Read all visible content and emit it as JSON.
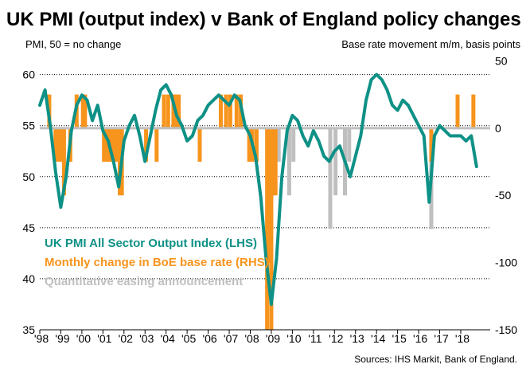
{
  "chart_data": {
    "type": "line",
    "title": "UK PMI (output index) v Bank of England policy changes",
    "left_axis_label": "PMI, 50 = no change",
    "right_axis_label": "Base rate movement  m/m, basis points",
    "source": "Sources: IHS Markit, Bank of England.",
    "x_tick_labels": [
      "'98",
      "'99",
      "'00",
      "'01",
      "'02",
      "'03",
      "'04",
      "'05",
      "'06",
      "'07",
      "'08",
      "'09",
      "'10",
      "'11",
      "'12",
      "'13",
      "'14",
      "'15",
      "'16",
      "'17",
      "'18"
    ],
    "y_left": {
      "min": 35,
      "max": 62,
      "ticks": [
        35,
        40,
        45,
        50,
        55,
        60
      ]
    },
    "y_right": {
      "min": -150,
      "max": 55,
      "ticks": [
        -150,
        -100,
        -50,
        0,
        50
      ]
    },
    "grid": true,
    "legend": [
      {
        "label": "UK PMI All Sector Output Index (LHS)",
        "color": "#0e9186"
      },
      {
        "label": "Monthly change in BoE base rate (RHS)",
        "color": "#f7941d"
      },
      {
        "label": "Quantitative easing announcement",
        "color": "#bfbfbf"
      }
    ],
    "series": [
      {
        "name": "UK PMI All Sector Output Index (LHS)",
        "axis": "left",
        "color": "#0e9186",
        "x": [
          1998.0,
          1998.25,
          1998.5,
          1998.75,
          1999.0,
          1999.25,
          1999.5,
          1999.75,
          2000.0,
          2000.25,
          2000.5,
          2000.75,
          2001.0,
          2001.25,
          2001.5,
          2001.75,
          2002.0,
          2002.25,
          2002.5,
          2002.75,
          2003.0,
          2003.25,
          2003.5,
          2003.75,
          2004.0,
          2004.25,
          2004.5,
          2004.75,
          2005.0,
          2005.25,
          2005.5,
          2005.75,
          2006.0,
          2006.25,
          2006.5,
          2006.75,
          2007.0,
          2007.25,
          2007.5,
          2007.75,
          2008.0,
          2008.25,
          2008.5,
          2008.75,
          2009.0,
          2009.25,
          2009.5,
          2009.75,
          2010.0,
          2010.25,
          2010.5,
          2010.75,
          2011.0,
          2011.25,
          2011.5,
          2011.75,
          2012.0,
          2012.25,
          2012.5,
          2012.75,
          2013.0,
          2013.25,
          2013.5,
          2013.75,
          2014.0,
          2014.25,
          2014.5,
          2014.75,
          2015.0,
          2015.25,
          2015.5,
          2015.75,
          2016.0,
          2016.25,
          2016.5,
          2016.75,
          2017.0,
          2017.25,
          2017.5,
          2017.75,
          2018.0,
          2018.25,
          2018.5,
          2018.75
        ],
        "values": [
          57.0,
          58.5,
          55.0,
          50.5,
          47.0,
          50.0,
          54.5,
          57.0,
          58.0,
          57.5,
          55.5,
          57.0,
          54.5,
          53.5,
          51.5,
          49.0,
          53.5,
          55.0,
          56.0,
          54.0,
          51.5,
          54.0,
          56.5,
          58.5,
          59.0,
          58.0,
          56.0,
          55.0,
          53.5,
          54.0,
          55.5,
          56.0,
          57.0,
          57.5,
          58.0,
          57.5,
          57.0,
          58.0,
          57.5,
          55.0,
          54.0,
          52.0,
          48.0,
          42.0,
          37.5,
          42.0,
          50.0,
          54.5,
          56.0,
          55.5,
          54.0,
          53.0,
          54.5,
          53.5,
          52.0,
          51.5,
          52.5,
          53.0,
          51.5,
          50.0,
          52.0,
          54.0,
          57.5,
          59.5,
          60.0,
          59.5,
          58.5,
          57.0,
          56.5,
          57.5,
          57.0,
          56.0,
          55.0,
          54.0,
          47.5,
          54.0,
          55.0,
          54.5,
          54.0,
          54.0,
          54.0,
          53.5,
          54.0,
          51.0
        ]
      },
      {
        "name": "Monthly change in BoE base rate (RHS)",
        "axis": "right",
        "color": "#f7941d",
        "x": [
          1998.45,
          1998.75,
          1998.85,
          1998.95,
          1999.05,
          1999.15,
          1999.45,
          1999.75,
          2000.05,
          2000.15,
          2001.05,
          2001.15,
          2001.3,
          2001.45,
          2001.6,
          2001.7,
          2001.8,
          2001.9,
          2003.05,
          2003.55,
          2003.9,
          2004.1,
          2004.35,
          2004.45,
          2004.6,
          2005.6,
          2006.6,
          2006.85,
          2007.05,
          2007.35,
          2007.55,
          2007.95,
          2008.1,
          2008.3,
          2008.8,
          2008.9,
          2009.0,
          2009.1,
          2009.2,
          2016.6,
          2017.85,
          2018.6
        ],
        "values": [
          25,
          -25,
          -25,
          -25,
          -25,
          -50,
          -25,
          25,
          25,
          25,
          -25,
          -25,
          -25,
          -25,
          -25,
          -25,
          -50,
          -50,
          -25,
          -25,
          25,
          25,
          25,
          25,
          25,
          -25,
          25,
          25,
          25,
          25,
          25,
          -25,
          -25,
          -25,
          -150,
          -100,
          -150,
          -50,
          -50,
          -25,
          25,
          25
        ]
      },
      {
        "name": "Quantitative easing announcement",
        "axis": "right",
        "color": "#bfbfbf",
        "x": [
          2009.1,
          2009.35,
          2009.85,
          2010.05,
          2011.8,
          2012.05,
          2012.5,
          2012.7,
          2016.6
        ],
        "values": [
          -50,
          -25,
          -50,
          -25,
          -75,
          -50,
          -50,
          -25,
          -75
        ]
      }
    ]
  }
}
